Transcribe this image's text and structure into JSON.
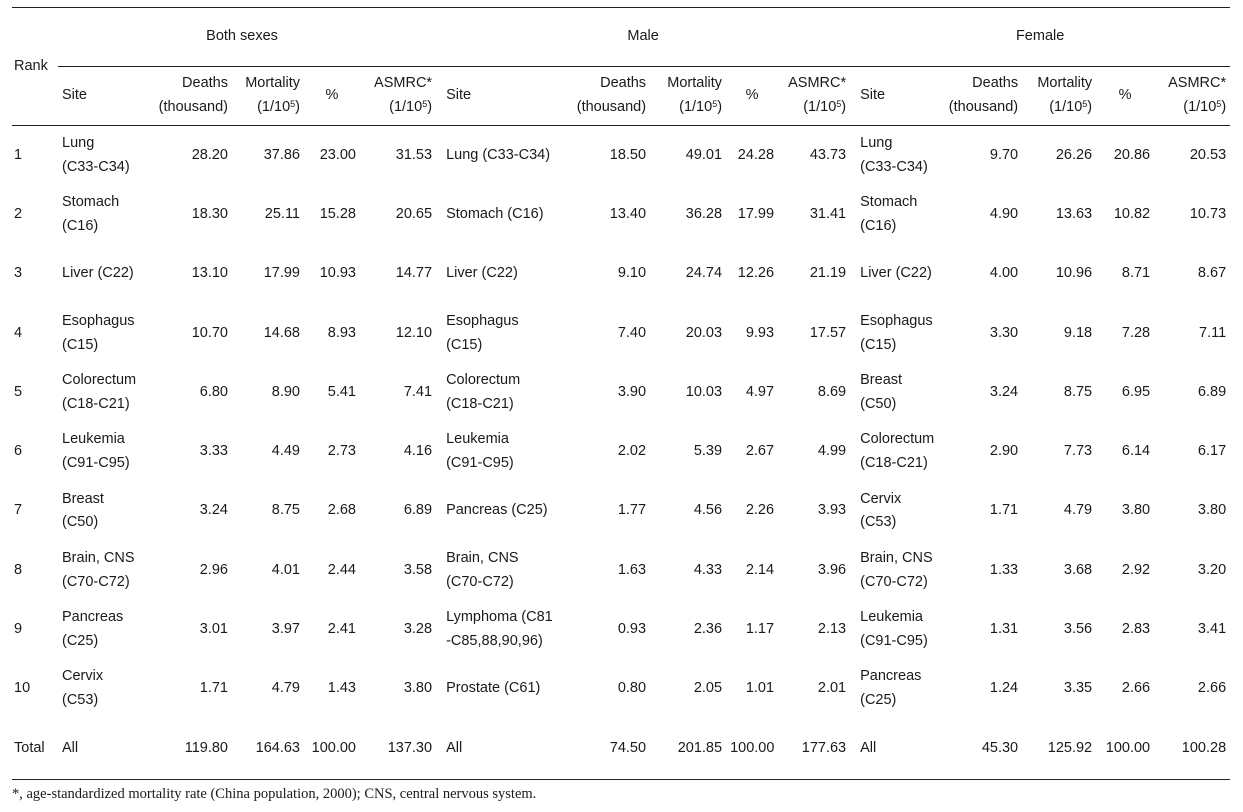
{
  "groups": [
    "Both sexes",
    "Male",
    "Female"
  ],
  "rank_label": "Rank",
  "site_label": "Site",
  "deaths_label_1": "Deaths",
  "deaths_label_2": "(thousand)",
  "mortality_label_1": "Mortality",
  "mortality_label_2": "(1/10",
  "percent_label": "%",
  "asmrc_label_1": "ASMRC*",
  "asmrc_label_2": "(1/10",
  "sup5": "5",
  "close_paren": ")",
  "rows": [
    {
      "rank": "1",
      "b": [
        "Lung",
        "(C33-C34)",
        "28.20",
        "37.86",
        "23.00",
        "31.53"
      ],
      "m": [
        "Lung (C33-C34)",
        "",
        "18.50",
        "49.01",
        "24.28",
        "43.73"
      ],
      "f": [
        "Lung",
        "(C33-C34)",
        "9.70",
        "26.26",
        "20.86",
        "20.53"
      ]
    },
    {
      "rank": "2",
      "b": [
        "Stomach",
        "(C16)",
        "18.30",
        "25.11",
        "15.28",
        "20.65"
      ],
      "m": [
        "Stomach (C16)",
        "",
        "13.40",
        "36.28",
        "17.99",
        "31.41"
      ],
      "f": [
        "Stomach",
        "(C16)",
        "4.90",
        "13.63",
        "10.82",
        "10.73"
      ]
    },
    {
      "rank": "3",
      "b": [
        "Liver (C22)",
        "",
        "13.10",
        "17.99",
        "10.93",
        "14.77"
      ],
      "m": [
        "Liver (C22)",
        "",
        "9.10",
        "24.74",
        "12.26",
        "21.19"
      ],
      "f": [
        "Liver (C22)",
        "",
        "4.00",
        "10.96",
        "8.71",
        "8.67"
      ]
    },
    {
      "rank": "4",
      "b": [
        "Esophagus",
        "(C15)",
        "10.70",
        "14.68",
        "8.93",
        "12.10"
      ],
      "m": [
        "Esophagus",
        "(C15)",
        "7.40",
        "20.03",
        "9.93",
        "17.57"
      ],
      "f": [
        "Esophagus",
        "(C15)",
        "3.30",
        "9.18",
        "7.28",
        "7.11"
      ]
    },
    {
      "rank": "5",
      "b": [
        "Colorectum",
        "(C18-C21)",
        "6.80",
        "8.90",
        "5.41",
        "7.41"
      ],
      "m": [
        "Colorectum",
        "(C18-C21)",
        "3.90",
        "10.03",
        "4.97",
        "8.69"
      ],
      "f": [
        "Breast",
        "(C50)",
        "3.24",
        "8.75",
        "6.95",
        "6.89"
      ]
    },
    {
      "rank": "6",
      "b": [
        "Leukemia",
        "(C91-C95)",
        "3.33",
        "4.49",
        "2.73",
        "4.16"
      ],
      "m": [
        "Leukemia",
        "(C91-C95)",
        "2.02",
        "5.39",
        "2.67",
        "4.99"
      ],
      "f": [
        "Colorectum",
        "(C18-C21)",
        "2.90",
        "7.73",
        "6.14",
        "6.17"
      ]
    },
    {
      "rank": "7",
      "b": [
        "Breast",
        "(C50)",
        "3.24",
        "8.75",
        "2.68",
        "6.89"
      ],
      "m": [
        "Pancreas (C25)",
        "",
        "1.77",
        "4.56",
        "2.26",
        "3.93"
      ],
      "f": [
        "Cervix",
        "(C53)",
        "1.71",
        "4.79",
        "3.80",
        "3.80"
      ]
    },
    {
      "rank": "8",
      "b": [
        "Brain, CNS",
        "(C70-C72)",
        "2.96",
        "4.01",
        "2.44",
        "3.58"
      ],
      "m": [
        "Brain, CNS",
        "(C70-C72)",
        "1.63",
        "4.33",
        "2.14",
        "3.96"
      ],
      "f": [
        "Brain, CNS",
        "(C70-C72)",
        "1.33",
        "3.68",
        "2.92",
        "3.20"
      ]
    },
    {
      "rank": "9",
      "b": [
        "Pancreas",
        "(C25)",
        "3.01",
        "3.97",
        "2.41",
        "3.28"
      ],
      "m": [
        "Lymphoma (C81",
        "-C85,88,90,96)",
        "0.93",
        "2.36",
        "1.17",
        "2.13"
      ],
      "f": [
        "Leukemia",
        "(C91-C95)",
        "1.31",
        "3.56",
        "2.83",
        "3.41"
      ]
    },
    {
      "rank": "10",
      "b": [
        "Cervix",
        "(C53)",
        "1.71",
        "4.79",
        "1.43",
        "3.80"
      ],
      "m": [
        "Prostate (C61)",
        "",
        "0.80",
        "2.05",
        "1.01",
        "2.01"
      ],
      "f": [
        "Pancreas",
        "(C25)",
        "1.24",
        "3.35",
        "2.66",
        "2.66"
      ]
    }
  ],
  "total": {
    "rank": "Total",
    "b": [
      "All",
      "",
      "119.80",
      "164.63",
      "100.00",
      "137.30"
    ],
    "m": [
      "All",
      "",
      "74.50",
      "201.85",
      "100.00",
      "177.63"
    ],
    "f": [
      "All",
      "",
      "45.30",
      "125.92",
      "100.00",
      "100.28"
    ]
  },
  "footnote": "*, age-standardized mortality rate (China population, 2000); CNS, central nervous system."
}
